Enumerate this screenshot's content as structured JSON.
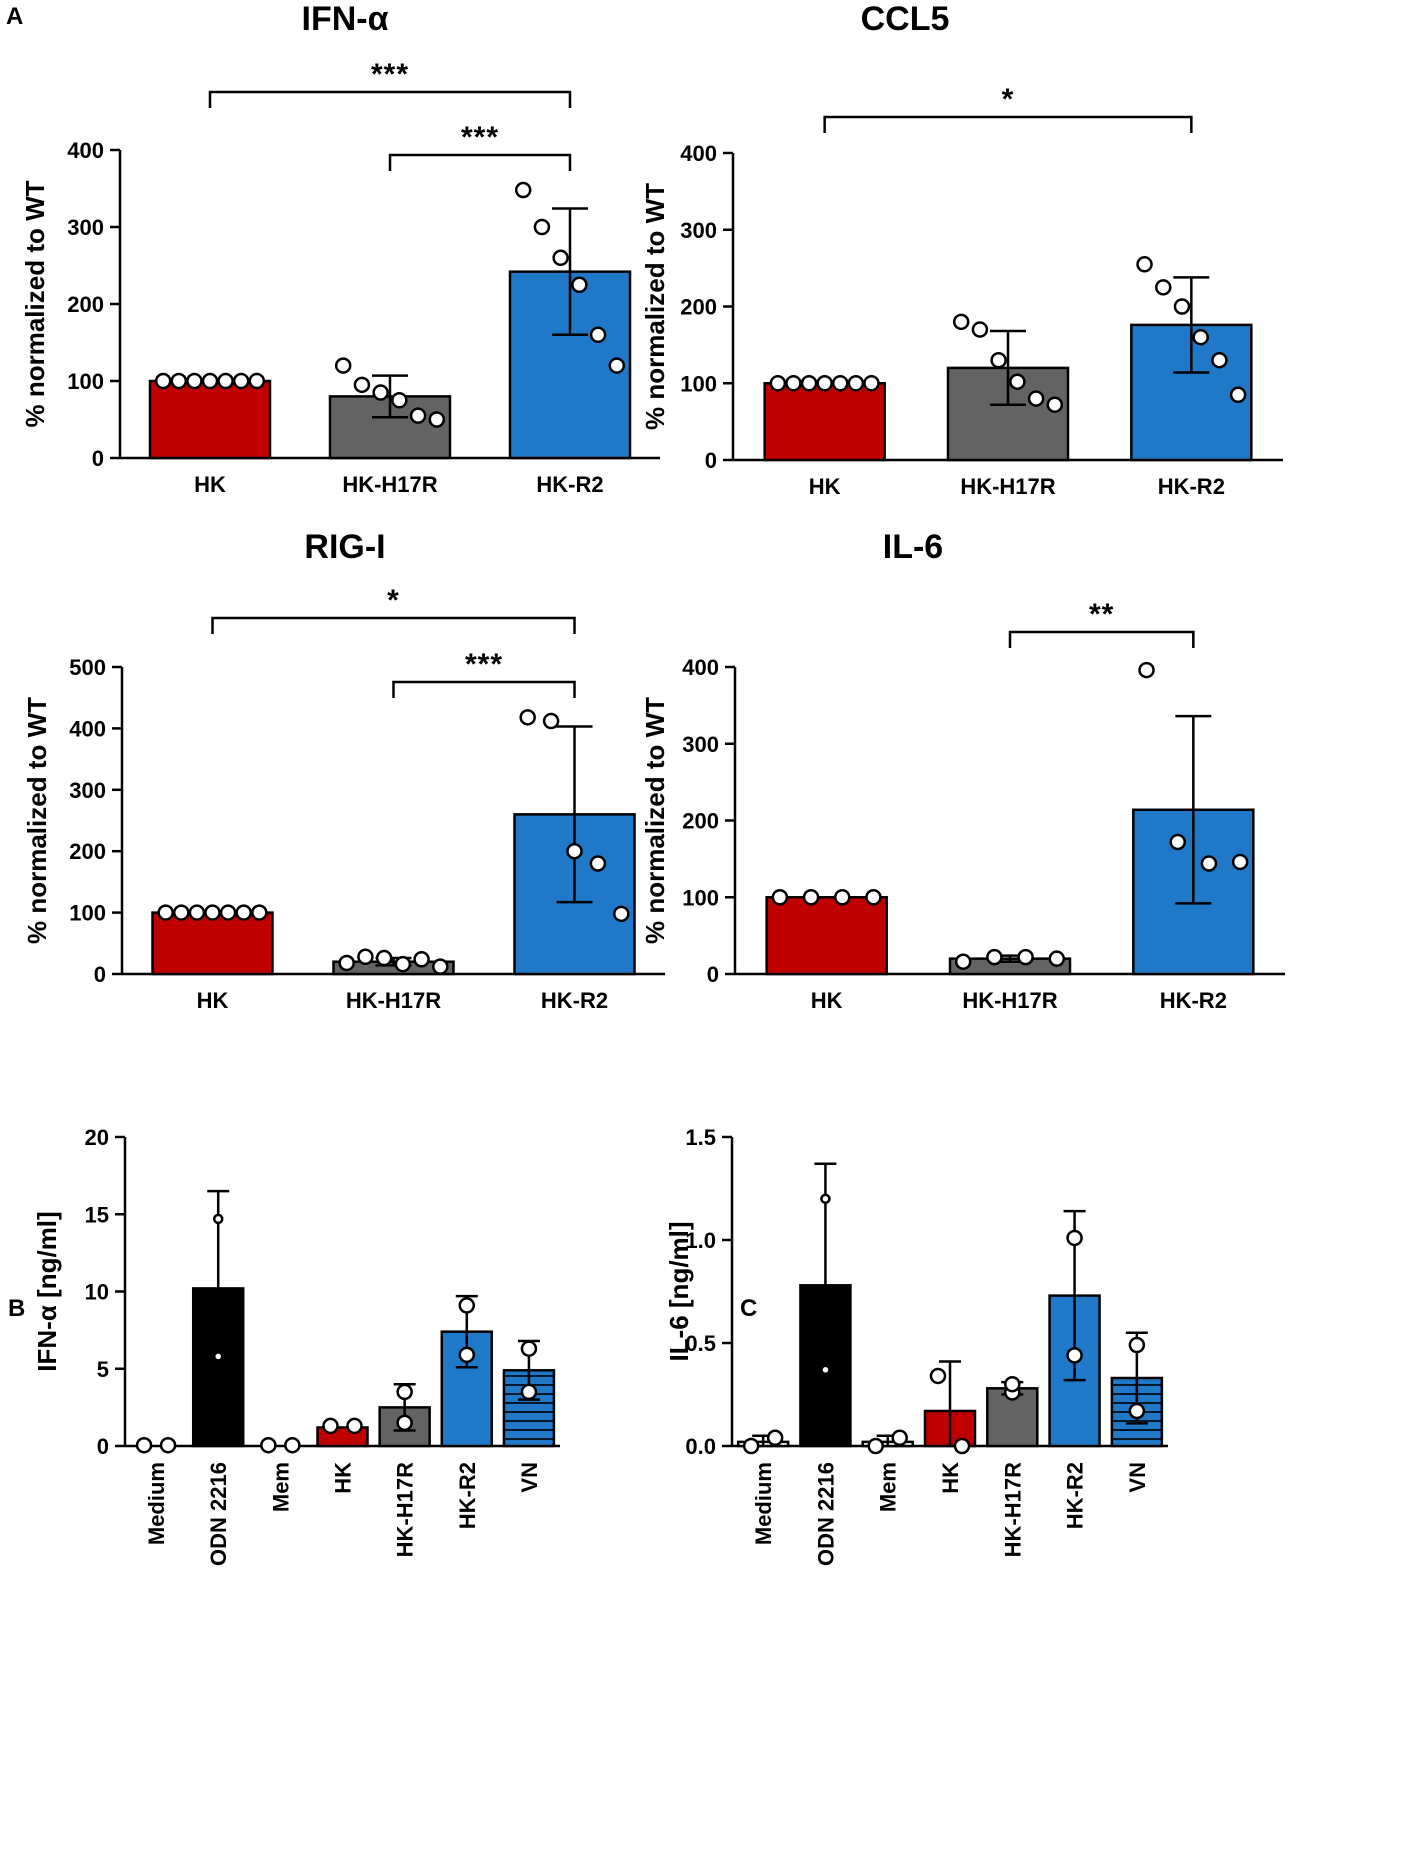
{
  "panels": {
    "a": "A",
    "b": "B",
    "c": "C"
  },
  "colors": {
    "HK": "#c00000",
    "HK-H17R": "#636363",
    "HK-R2": "#1f78c8",
    "VN": "#1f78c8",
    "ODN 2216": "#000000",
    "Medium": "#ffffff",
    "Mem": "#ffffff"
  },
  "chart_data": [
    {
      "id": "ifna",
      "type": "bar",
      "title": "IFN-α",
      "ylabel": "% normalized to  WT",
      "ylim": [
        0,
        400
      ],
      "yticks": [
        0,
        100,
        200,
        300,
        400
      ],
      "categories": [
        "HK",
        "HK-H17R",
        "HK-R2"
      ],
      "values": [
        100,
        80,
        242
      ],
      "error": [
        0,
        27,
        82
      ],
      "points": [
        [
          100,
          100,
          100,
          100,
          100,
          100,
          100
        ],
        [
          120,
          95,
          85,
          75,
          55,
          50
        ],
        [
          348,
          300,
          260,
          225,
          160,
          120
        ]
      ],
      "significance": [
        {
          "from": 0,
          "to": 2,
          "label": "***",
          "level": 1
        },
        {
          "from": 1,
          "to": 2,
          "label": "***",
          "level": 0
        }
      ]
    },
    {
      "id": "ccl5",
      "type": "bar",
      "title": "CCL5",
      "ylabel": "% normalized to  WT",
      "ylim": [
        0,
        400
      ],
      "yticks": [
        0,
        100,
        200,
        300,
        400
      ],
      "categories": [
        "HK",
        "HK-H17R",
        "HK-R2"
      ],
      "values": [
        100,
        120,
        176
      ],
      "error": [
        0,
        48,
        62
      ],
      "points": [
        [
          100,
          100,
          100,
          100,
          100,
          100,
          100
        ],
        [
          180,
          170,
          130,
          102,
          80,
          72
        ],
        [
          255,
          225,
          200,
          160,
          130,
          85
        ]
      ],
      "significance": [
        {
          "from": 0,
          "to": 2,
          "label": "*",
          "level": 1
        }
      ]
    },
    {
      "id": "rigi",
      "type": "bar",
      "title": "RIG-I",
      "ylabel": "% normalized to  WT",
      "ylim": [
        0,
        500
      ],
      "yticks": [
        0,
        100,
        200,
        300,
        400,
        500
      ],
      "categories": [
        "HK",
        "HK-H17R",
        "HK-R2"
      ],
      "values": [
        100,
        20,
        260
      ],
      "error": [
        0,
        6,
        143
      ],
      "points": [
        [
          100,
          100,
          100,
          100,
          100,
          100,
          100
        ],
        [
          18,
          28,
          26,
          16,
          24,
          12
        ],
        [
          418,
          412,
          200,
          180,
          98
        ]
      ],
      "significance": [
        {
          "from": 0,
          "to": 2,
          "label": "*",
          "level": 1
        },
        {
          "from": 1,
          "to": 2,
          "label": "***",
          "level": 0
        }
      ]
    },
    {
      "id": "il6",
      "type": "bar",
      "title": "IL-6",
      "ylabel": "% normalized to  WT",
      "ylim": [
        0,
        400
      ],
      "yticks": [
        0,
        100,
        200,
        300,
        400
      ],
      "categories": [
        "HK",
        "HK-H17R",
        "HK-R2"
      ],
      "values": [
        100,
        20,
        214
      ],
      "error": [
        0,
        4,
        122
      ],
      "points": [
        [
          100,
          100,
          100,
          100
        ],
        [
          16,
          22,
          22,
          20
        ],
        [
          396,
          172,
          144,
          146
        ]
      ],
      "significance": [
        {
          "from": 1,
          "to": 2,
          "label": "**",
          "level": 0
        }
      ]
    },
    {
      "id": "b",
      "type": "bar",
      "title": "",
      "ylabel": "IFN-α [ng/ml]",
      "ylim": [
        0,
        20
      ],
      "yticks": [
        "0",
        "5",
        "10",
        "15",
        "20"
      ],
      "ytick_values": [
        0,
        5,
        10,
        15,
        20
      ],
      "categories": [
        "Medium",
        "ODN 2216",
        "Mem",
        "HK",
        "HK-H17R",
        "HK-R2",
        "VN"
      ],
      "values": [
        0,
        10.2,
        0,
        1.2,
        2.5,
        7.4,
        4.9
      ],
      "error": [
        0,
        6.3,
        0,
        0,
        1.5,
        2.3,
        1.9
      ],
      "points": [
        [
          0.05,
          0.05
        ],
        [
          14.7,
          5.8
        ],
        [
          0.05,
          0.05
        ],
        [
          1.3,
          1.3
        ],
        [
          3.5,
          1.5
        ],
        [
          9.1,
          5.9
        ],
        [
          6.3,
          3.5
        ]
      ],
      "hatched": [
        false,
        false,
        false,
        false,
        false,
        false,
        true
      ]
    },
    {
      "id": "c",
      "type": "bar",
      "title": "",
      "ylabel": "IL-6 [ng/ml]",
      "ylim": [
        0,
        1.5
      ],
      "yticks": [
        "0.0",
        "0.5",
        "1.0",
        "1.5"
      ],
      "ytick_values": [
        0,
        0.5,
        1.0,
        1.5
      ],
      "categories": [
        "Medium",
        "ODN 2216",
        "Mem",
        "HK",
        "HK-H17R",
        "HK-R2",
        "VN"
      ],
      "values": [
        0.02,
        0.78,
        0.02,
        0.17,
        0.28,
        0.73,
        0.33
      ],
      "error": [
        0.03,
        0.59,
        0.03,
        0.24,
        0.03,
        0.41,
        0.22
      ],
      "points": [
        [
          0.0,
          0.04
        ],
        [
          1.2,
          0.37
        ],
        [
          0.0,
          0.04
        ],
        [
          0.34,
          0.0
        ],
        [
          0.26,
          0.3
        ],
        [
          1.01,
          0.44
        ],
        [
          0.49,
          0.17
        ]
      ],
      "hatched": [
        false,
        false,
        false,
        false,
        false,
        false,
        true
      ]
    }
  ]
}
